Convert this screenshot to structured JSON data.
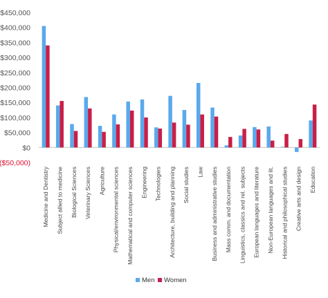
{
  "chart_data": {
    "type": "bar",
    "title": "",
    "xlabel": "",
    "ylabel": "",
    "ylim": [
      -50000,
      450000
    ],
    "yticks": [
      {
        "value": 450000,
        "label": "$450,000",
        "color": "#555555"
      },
      {
        "value": 400000,
        "label": "$400,000",
        "color": "#555555"
      },
      {
        "value": 350000,
        "label": "$350,000",
        "color": "#555555"
      },
      {
        "value": 300000,
        "label": "$300,000",
        "color": "#555555"
      },
      {
        "value": 250000,
        "label": "$250,000",
        "color": "#555555"
      },
      {
        "value": 200000,
        "label": "$200,000",
        "color": "#555555"
      },
      {
        "value": 150000,
        "label": "$150,000",
        "color": "#555555"
      },
      {
        "value": 100000,
        "label": "$100,000",
        "color": "#555555"
      },
      {
        "value": 50000,
        "label": "$50,000",
        "color": "#555555"
      },
      {
        "value": 0,
        "label": "$0",
        "color": "#555555"
      },
      {
        "value": -50000,
        "label": "($50,000)",
        "color": "#e0102f"
      }
    ],
    "grid": false,
    "legend_position": "bottom",
    "categories": [
      "Medicine and Dentistry",
      "Subject allied to medicine",
      "Biological Sciences",
      "Veterinary Sciences",
      "Agriculture",
      "Physical/environmental sciences",
      "Mathematical and computer sciences",
      "Engineering",
      "Technologies",
      "Architecture, building and planning",
      "Social studies",
      "Law",
      "Business and administrative studies",
      "Mass comm. and documentation",
      "Linguistics, classics and rel. subjects",
      "European languages and literature",
      "Non-European languages and lit.",
      "Historical and philosophical studies",
      "Creative arts and design",
      "Education"
    ],
    "series": [
      {
        "name": "Men",
        "color": "#5aa9ec",
        "values": [
          405000,
          140000,
          78000,
          168000,
          72000,
          110000,
          153000,
          160000,
          67000,
          172000,
          125000,
          215000,
          133000,
          7000,
          40000,
          68000,
          70000,
          2000,
          -15000,
          90000
        ]
      },
      {
        "name": "Women",
        "color": "#c81f48",
        "values": [
          340000,
          155000,
          55000,
          130000,
          52000,
          77000,
          123000,
          100000,
          63000,
          83000,
          76000,
          110000,
          103000,
          35000,
          62000,
          60000,
          23000,
          45000,
          28000,
          143000
        ]
      }
    ]
  }
}
